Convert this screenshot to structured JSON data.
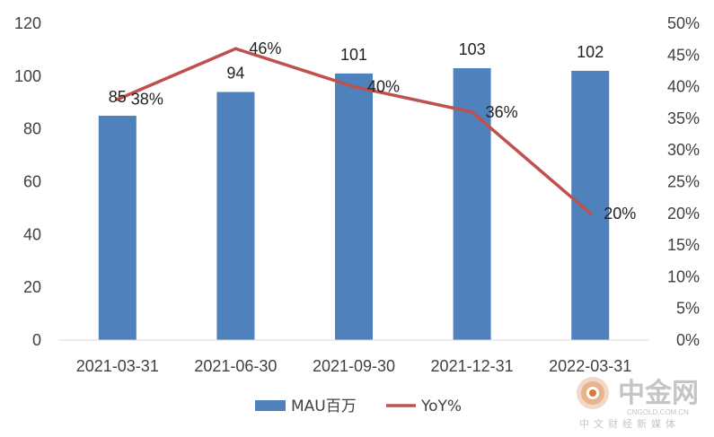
{
  "chart_data": {
    "type": "bar",
    "categories": [
      "2021-03-31",
      "2021-06-30",
      "2021-09-30",
      "2021-12-31",
      "2022-03-31"
    ],
    "series": [
      {
        "name": "MAU百万",
        "type": "bar",
        "axis": "left",
        "values": [
          85,
          94,
          101,
          103,
          102
        ],
        "labels": [
          "85",
          "94",
          "101",
          "103",
          "102"
        ],
        "color": "#4f81bd"
      },
      {
        "name": "YoY%",
        "type": "line",
        "axis": "right",
        "values": [
          38,
          46,
          40,
          36,
          20
        ],
        "labels": [
          "38%",
          "46%",
          "40%",
          "36%",
          "20%"
        ],
        "color": "#c0504d"
      }
    ],
    "y_left": {
      "min": 0,
      "max": 120,
      "ticks": [
        "0",
        "20",
        "40",
        "60",
        "80",
        "100",
        "120"
      ]
    },
    "y_right": {
      "min": 0,
      "max": 50,
      "ticks": [
        "0%",
        "5%",
        "10%",
        "15%",
        "20%",
        "25%",
        "30%",
        "35%",
        "40%",
        "45%",
        "50%"
      ]
    },
    "grid": false,
    "legend_position": "bottom"
  },
  "watermark": {
    "title": "中金网",
    "domain": "CNGOLD.COM.CN",
    "subtitle": "中文财经新媒体"
  }
}
